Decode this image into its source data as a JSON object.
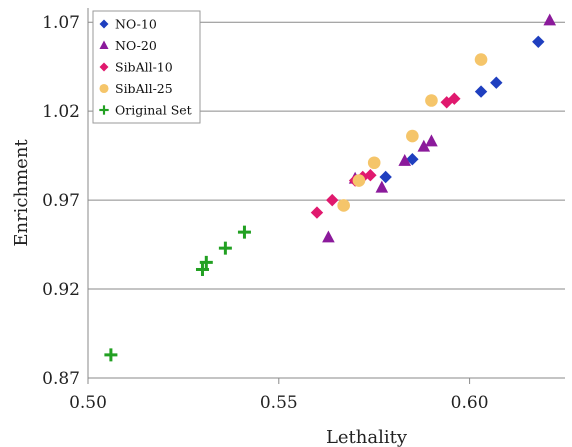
{
  "chart_data": {
    "type": "scatter",
    "xlabel": "Lethality",
    "ylabel": "Enrichment",
    "xlim": [
      0.5,
      0.625
    ],
    "ylim": [
      0.87,
      1.078
    ],
    "xticks": [
      0.5,
      0.55,
      0.6
    ],
    "xtick_labels": [
      "0.50",
      "0.55",
      "0.60"
    ],
    "yticks": [
      0.87,
      0.92,
      0.97,
      1.02,
      1.07
    ],
    "ytick_labels": [
      "0.87",
      "0.92",
      "0.97",
      "1.02",
      "1.07"
    ],
    "grid": "horizontal",
    "legend_position": "top-left",
    "series": [
      {
        "name": "NO-10",
        "marker": "diamond",
        "color": "#1f3fbf",
        "points": [
          [
            0.618,
            1.059
          ],
          [
            0.607,
            1.036
          ],
          [
            0.603,
            1.031
          ],
          [
            0.585,
            0.993
          ],
          [
            0.578,
            0.983
          ]
        ]
      },
      {
        "name": "NO-20",
        "marker": "triangle",
        "color": "#8b1a9b",
        "points": [
          [
            0.621,
            1.071
          ],
          [
            0.59,
            1.003
          ],
          [
            0.588,
            1.0
          ],
          [
            0.583,
            0.992
          ],
          [
            0.577,
            0.977
          ],
          [
            0.57,
            0.982
          ],
          [
            0.563,
            0.949
          ]
        ]
      },
      {
        "name": "SibAll-10",
        "marker": "diamond",
        "color": "#e0196e",
        "points": [
          [
            0.596,
            1.027
          ],
          [
            0.594,
            1.025
          ],
          [
            0.574,
            0.984
          ],
          [
            0.572,
            0.983
          ],
          [
            0.57,
            0.981
          ],
          [
            0.564,
            0.97
          ],
          [
            0.56,
            0.963
          ]
        ]
      },
      {
        "name": "SibAll-25",
        "marker": "circle",
        "color": "#f5c56a",
        "points": [
          [
            0.603,
            1.049
          ],
          [
            0.59,
            1.026
          ],
          [
            0.585,
            1.006
          ],
          [
            0.575,
            0.991
          ],
          [
            0.571,
            0.981
          ],
          [
            0.567,
            0.967
          ]
        ]
      },
      {
        "name": "Original Set",
        "marker": "plus",
        "color": "#22a022",
        "points": [
          [
            0.541,
            0.952
          ],
          [
            0.536,
            0.943
          ],
          [
            0.531,
            0.935
          ],
          [
            0.53,
            0.931
          ],
          [
            0.506,
            0.883
          ]
        ]
      }
    ]
  }
}
